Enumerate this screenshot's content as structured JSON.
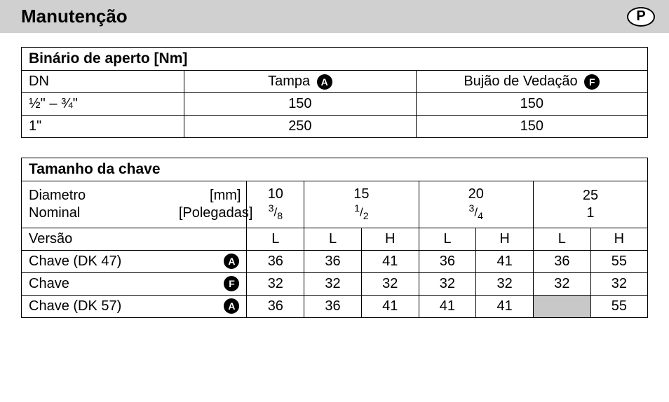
{
  "header": {
    "title": "Manutenção",
    "lang": "P"
  },
  "table1": {
    "title": "Binário de aperto [Nm]",
    "cols": {
      "c1": "DN",
      "c2": "Tampa",
      "c2_badge": "A",
      "c3": "Bujão de Vedação",
      "c3_badge": "F"
    },
    "rows": [
      {
        "dn": "½\" – ¾\"",
        "tampa": "150",
        "bujao": "150"
      },
      {
        "dn": "1\"",
        "tampa": "250",
        "bujao": "150"
      }
    ]
  },
  "table2": {
    "title": "Tamanho da chave",
    "diamLabelL1": "Diametro",
    "diamLabelL2": "Nominal",
    "unitMm": "[mm]",
    "unitIn": "[Polegadas]",
    "cols": [
      {
        "mm": "10",
        "in": "3/8"
      },
      {
        "mm": "15",
        "in": "1/2"
      },
      {
        "mm": "20",
        "in": "3/4"
      },
      {
        "mm": "25",
        "in": "1"
      }
    ],
    "versaoLabel": "Versão",
    "versao": [
      "L",
      "L",
      "H",
      "L",
      "H",
      "L",
      "H"
    ],
    "rows": [
      {
        "label": "Chave (DK 47)",
        "badge": "A",
        "v": [
          "36",
          "36",
          "41",
          "36",
          "41",
          "36",
          "55"
        ],
        "shaded": []
      },
      {
        "label": "Chave",
        "badge": "F",
        "v": [
          "32",
          "32",
          "32",
          "32",
          "32",
          "32",
          "32"
        ],
        "shaded": []
      },
      {
        "label": "Chave (DK 57)",
        "badge": "A",
        "v": [
          "36",
          "36",
          "41",
          "41",
          "41",
          "",
          "55"
        ],
        "shaded": [
          5
        ]
      }
    ]
  },
  "style": {
    "headerBg": "#d0d0d0",
    "shadedBg": "#c8c8c8",
    "border": "#000000",
    "text": "#000000",
    "badgeBg": "#000000",
    "badgeFg": "#ffffff"
  }
}
